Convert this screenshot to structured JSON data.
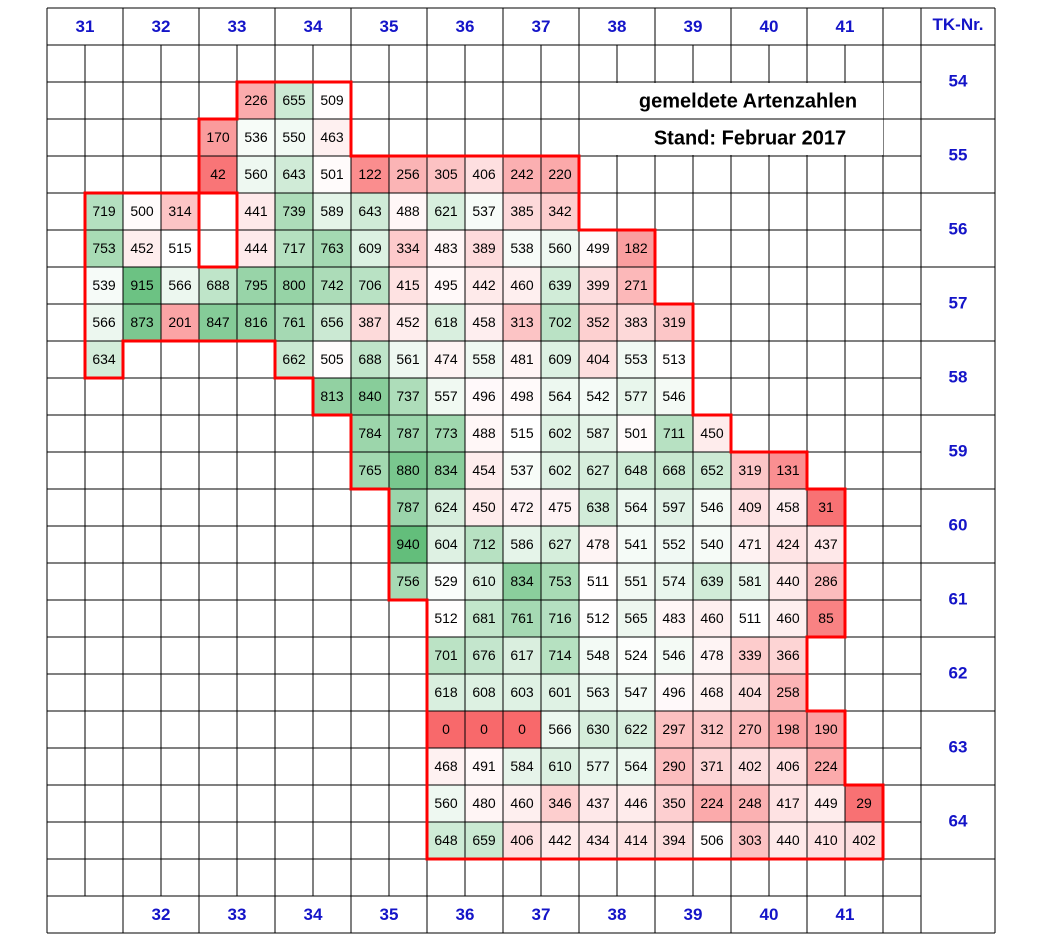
{
  "header": {
    "tk_label": "TK-Nr.",
    "top_columns": [
      31,
      32,
      33,
      34,
      35,
      36,
      37,
      38,
      39,
      40,
      41
    ],
    "bottom_columns": [
      32,
      33,
      34,
      35,
      36,
      37,
      38,
      39,
      40,
      41
    ],
    "rows": [
      54,
      55,
      56,
      57,
      58,
      59,
      60,
      61,
      62,
      63,
      64
    ]
  },
  "title": {
    "line1": "gemeldete Artenzahlen",
    "line2": "Stand: Februar 2017"
  },
  "grid": {
    "colors": {
      "low": "#f8696b",
      "mid": "#ffffff",
      "high": "#63be7b"
    },
    "border": "#ff0000",
    "rows": [
      [
        null,
        null,
        null,
        null,
        null,
        null,
        null,
        null,
        null,
        null,
        null,
        null,
        null,
        null,
        null,
        null,
        null,
        null,
        null,
        null,
        null,
        null,
        null
      ],
      [
        null,
        null,
        null,
        null,
        null,
        226,
        655,
        509,
        null,
        null,
        null,
        null,
        null,
        null,
        null,
        null,
        null,
        null,
        null,
        null,
        null,
        null,
        null
      ],
      [
        null,
        null,
        null,
        null,
        170,
        536,
        550,
        463,
        null,
        null,
        null,
        null,
        null,
        null,
        null,
        null,
        null,
        null,
        null,
        null,
        null,
        null,
        null
      ],
      [
        null,
        null,
        null,
        null,
        42,
        560,
        643,
        501,
        122,
        256,
        305,
        406,
        242,
        220,
        null,
        null,
        null,
        null,
        null,
        null,
        null,
        null,
        null
      ],
      [
        null,
        719,
        500,
        314,
        null,
        441,
        739,
        589,
        643,
        488,
        621,
        537,
        385,
        342,
        null,
        null,
        null,
        null,
        null,
        null,
        null,
        null,
        null
      ],
      [
        null,
        753,
        452,
        515,
        null,
        444,
        717,
        763,
        609,
        334,
        483,
        389,
        538,
        560,
        499,
        182,
        null,
        null,
        null,
        null,
        null,
        null,
        null
      ],
      [
        null,
        539,
        915,
        566,
        688,
        795,
        800,
        742,
        706,
        415,
        495,
        442,
        460,
        639,
        399,
        271,
        null,
        null,
        null,
        null,
        null,
        null,
        null
      ],
      [
        null,
        566,
        873,
        201,
        847,
        816,
        761,
        656,
        387,
        452,
        618,
        458,
        313,
        702,
        352,
        383,
        319,
        null,
        null,
        null,
        null,
        null,
        null
      ],
      [
        null,
        634,
        null,
        null,
        null,
        null,
        662,
        505,
        688,
        561,
        474,
        558,
        481,
        609,
        404,
        553,
        513,
        null,
        null,
        null,
        null,
        null,
        null
      ],
      [
        null,
        null,
        null,
        null,
        null,
        null,
        null,
        813,
        840,
        737,
        557,
        496,
        498,
        564,
        542,
        577,
        546,
        null,
        null,
        null,
        null,
        null,
        null
      ],
      [
        null,
        null,
        null,
        null,
        null,
        null,
        null,
        null,
        784,
        787,
        773,
        488,
        515,
        602,
        587,
        501,
        711,
        450,
        null,
        null,
        null,
        null,
        null
      ],
      [
        null,
        null,
        null,
        null,
        null,
        null,
        null,
        null,
        765,
        880,
        834,
        454,
        537,
        602,
        627,
        648,
        668,
        652,
        319,
        131,
        null,
        null,
        null
      ],
      [
        null,
        null,
        null,
        null,
        null,
        null,
        null,
        null,
        null,
        787,
        624,
        450,
        472,
        475,
        638,
        564,
        597,
        546,
        409,
        458,
        31,
        null,
        null
      ],
      [
        null,
        null,
        null,
        null,
        null,
        null,
        null,
        null,
        null,
        940,
        604,
        712,
        586,
        627,
        478,
        541,
        552,
        540,
        471,
        424,
        437,
        null,
        null
      ],
      [
        null,
        null,
        null,
        null,
        null,
        null,
        null,
        null,
        null,
        756,
        529,
        610,
        834,
        753,
        511,
        551,
        574,
        639,
        581,
        440,
        286,
        null,
        null
      ],
      [
        null,
        null,
        null,
        null,
        null,
        null,
        null,
        null,
        null,
        null,
        512,
        681,
        761,
        716,
        512,
        565,
        483,
        460,
        511,
        460,
        85,
        null,
        null
      ],
      [
        null,
        null,
        null,
        null,
        null,
        null,
        null,
        null,
        null,
        null,
        701,
        676,
        617,
        714,
        548,
        524,
        546,
        478,
        339,
        366,
        null,
        null,
        null
      ],
      [
        null,
        null,
        null,
        null,
        null,
        null,
        null,
        null,
        null,
        null,
        618,
        608,
        603,
        601,
        563,
        547,
        496,
        468,
        404,
        258,
        null,
        null,
        null
      ],
      [
        null,
        null,
        null,
        null,
        null,
        null,
        null,
        null,
        null,
        null,
        0,
        0,
        0,
        566,
        630,
        622,
        297,
        312,
        270,
        198,
        190,
        null,
        null
      ],
      [
        null,
        null,
        null,
        null,
        null,
        null,
        null,
        null,
        null,
        null,
        468,
        491,
        584,
        610,
        577,
        564,
        290,
        371,
        402,
        406,
        224,
        null,
        null
      ],
      [
        null,
        null,
        null,
        null,
        null,
        null,
        null,
        null,
        null,
        null,
        560,
        480,
        460,
        346,
        437,
        446,
        350,
        224,
        248,
        417,
        449,
        29,
        null
      ],
      [
        null,
        null,
        null,
        null,
        null,
        null,
        null,
        null,
        null,
        null,
        648,
        659,
        406,
        442,
        434,
        414,
        394,
        506,
        303,
        440,
        410,
        402,
        null
      ],
      [
        null,
        null,
        null,
        null,
        null,
        null,
        null,
        null,
        null,
        null,
        null,
        null,
        null,
        null,
        null,
        null,
        null,
        null,
        null,
        null,
        null,
        null,
        null
      ]
    ]
  }
}
